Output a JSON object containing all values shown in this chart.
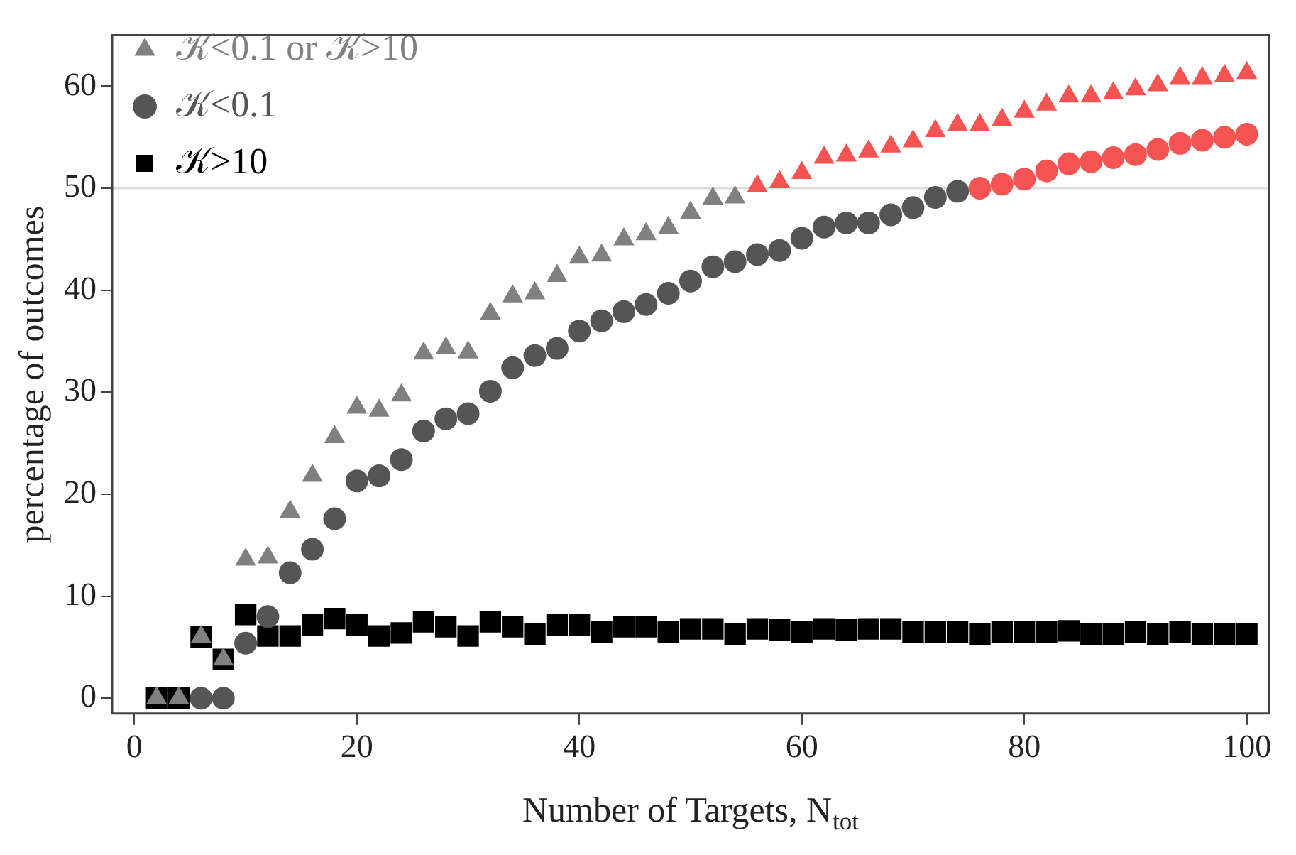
{
  "chart_data": {
    "type": "scatter",
    "xlabel": "Number of Targets, N$_{tot}$",
    "ylabel": "percentage of outcomes",
    "x": [
      2,
      4,
      6,
      8,
      10,
      12,
      14,
      16,
      18,
      20,
      22,
      24,
      26,
      28,
      30,
      32,
      34,
      36,
      38,
      40,
      42,
      44,
      46,
      48,
      50,
      52,
      54,
      56,
      58,
      60,
      62,
      64,
      66,
      68,
      70,
      72,
      74,
      76,
      78,
      80,
      82,
      84,
      86,
      88,
      90,
      92,
      94,
      96,
      98,
      100
    ],
    "xlim": [
      -2,
      102
    ],
    "xticks": [
      0,
      20,
      40,
      60,
      80,
      100
    ],
    "ylim": [
      -1.5,
      65
    ],
    "yticks": [
      0,
      10,
      20,
      30,
      40,
      50,
      60
    ],
    "grid": false,
    "legend": "top left",
    "ref_lines": [
      {
        "axis": "y",
        "value": 50,
        "color": "#dddddd"
      }
    ],
    "series": [
      {
        "name": "𝒦<0.1 or 𝒦>10",
        "color": "#808080",
        "marker": "triangle",
        "values": [
          0,
          0,
          6.0,
          3.8,
          13.6,
          13.8,
          18.3,
          21.8,
          25.6,
          28.5,
          28.2,
          29.7,
          33.8,
          34.3,
          33.9,
          37.7,
          39.4,
          39.7,
          41.4,
          43.2,
          43.4,
          45.0,
          45.5,
          46.1,
          47.6,
          49.0,
          49.1,
          50.2,
          50.6,
          51.5,
          53.0,
          53.2,
          53.6,
          54.1,
          54.6,
          55.6,
          56.2,
          56.2,
          56.7,
          57.5,
          58.2,
          59.0,
          59.0,
          59.3,
          59.7,
          60.1,
          60.8,
          60.8,
          61.0,
          61.3
        ],
        "colors": [
          "#808080",
          "#808080",
          "#808080",
          "#808080",
          "#808080",
          "#808080",
          "#808080",
          "#808080",
          "#808080",
          "#808080",
          "#808080",
          "#808080",
          "#808080",
          "#808080",
          "#808080",
          "#808080",
          "#808080",
          "#808080",
          "#808080",
          "#808080",
          "#808080",
          "#808080",
          "#808080",
          "#808080",
          "#808080",
          "#808080",
          "#808080",
          "#f65353",
          "#f65353",
          "#f65353",
          "#f65353",
          "#f65353",
          "#f65353",
          "#f65353",
          "#f65353",
          "#f65353",
          "#f65353",
          "#f65353",
          "#f65353",
          "#f65353",
          "#f65353",
          "#f65353",
          "#f65353",
          "#f65353",
          "#f65353",
          "#f65353",
          "#f65353",
          "#f65353",
          "#f65353",
          "#f65353"
        ]
      },
      {
        "name": "𝒦<0.1",
        "color": "#555555",
        "marker": "circle",
        "values": [
          null,
          null,
          0,
          0,
          5.4,
          8.0,
          12.3,
          14.6,
          17.6,
          21.3,
          21.8,
          23.4,
          26.2,
          27.4,
          27.9,
          30.1,
          32.4,
          33.6,
          34.3,
          36.0,
          37.0,
          37.9,
          38.6,
          39.7,
          40.9,
          42.3,
          42.8,
          43.5,
          43.9,
          45.1,
          46.2,
          46.6,
          46.6,
          47.4,
          48.1,
          49.1,
          49.7,
          50.0,
          50.4,
          50.9,
          51.7,
          52.4,
          52.6,
          53.0,
          53.3,
          53.8,
          54.4,
          54.7,
          55.0,
          55.3
        ],
        "colors": [
          "#555555",
          "#555555",
          "#555555",
          "#555555",
          "#555555",
          "#555555",
          "#555555",
          "#555555",
          "#555555",
          "#555555",
          "#555555",
          "#555555",
          "#555555",
          "#555555",
          "#555555",
          "#555555",
          "#555555",
          "#555555",
          "#555555",
          "#555555",
          "#555555",
          "#555555",
          "#555555",
          "#555555",
          "#555555",
          "#555555",
          "#555555",
          "#555555",
          "#555555",
          "#555555",
          "#555555",
          "#555555",
          "#555555",
          "#555555",
          "#555555",
          "#555555",
          "#555555",
          "#f65353",
          "#f65353",
          "#f65353",
          "#f65353",
          "#f65353",
          "#f65353",
          "#f65353",
          "#f65353",
          "#f65353",
          "#f65353",
          "#f65353",
          "#f65353",
          "#f65353"
        ]
      },
      {
        "name": "𝒦>10",
        "color": "#000000",
        "marker": "square",
        "values": [
          0,
          0,
          6.0,
          3.8,
          8.2,
          6.1,
          6.1,
          7.2,
          7.8,
          7.2,
          6.1,
          6.4,
          7.5,
          7.0,
          6.1,
          7.5,
          7.0,
          6.3,
          7.2,
          7.2,
          6.5,
          7.0,
          7.0,
          6.5,
          6.8,
          6.8,
          6.3,
          6.8,
          6.7,
          6.5,
          6.8,
          6.7,
          6.8,
          6.8,
          6.5,
          6.5,
          6.5,
          6.3,
          6.5,
          6.5,
          6.5,
          6.6,
          6.3,
          6.3,
          6.5,
          6.3,
          6.5,
          6.3,
          6.3,
          6.3
        ]
      }
    ]
  }
}
